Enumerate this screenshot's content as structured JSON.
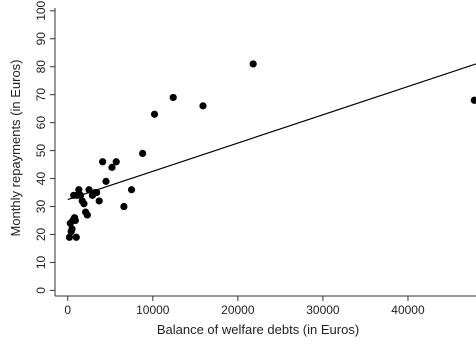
{
  "chart_data": {
    "type": "scatter",
    "title": "",
    "xlabel": "Balance of welfare debts (in Euros)",
    "ylabel": "Monthly repayments (in Euros)",
    "xlim": [
      -1500,
      48000
    ],
    "ylim": [
      -2,
      101
    ],
    "xticks": [
      0,
      10000,
      20000,
      30000,
      40000
    ],
    "xtick_labels": [
      "0",
      "10000",
      "20000",
      "30000",
      "40000"
    ],
    "yticks": [
      0,
      10,
      20,
      30,
      40,
      50,
      60,
      70,
      80,
      90,
      100
    ],
    "ytick_labels": [
      "0",
      "10",
      "20",
      "30",
      "40",
      "50",
      "60",
      "70",
      "80",
      "90",
      "100"
    ],
    "grid": false,
    "legend": "none",
    "colors": {
      "points": "#000000",
      "line": "#000000",
      "axis": "#333333"
    },
    "points": [
      {
        "x": 200,
        "y": 19
      },
      {
        "x": 300,
        "y": 24
      },
      {
        "x": 400,
        "y": 21
      },
      {
        "x": 500,
        "y": 22
      },
      {
        "x": 600,
        "y": 25
      },
      {
        "x": 700,
        "y": 34
      },
      {
        "x": 800,
        "y": 26
      },
      {
        "x": 900,
        "y": 25
      },
      {
        "x": 1000,
        "y": 19
      },
      {
        "x": 1100,
        "y": 34
      },
      {
        "x": 1300,
        "y": 36
      },
      {
        "x": 1500,
        "y": 34
      },
      {
        "x": 1700,
        "y": 32
      },
      {
        "x": 1900,
        "y": 31
      },
      {
        "x": 2100,
        "y": 28
      },
      {
        "x": 2300,
        "y": 27
      },
      {
        "x": 2500,
        "y": 36
      },
      {
        "x": 2900,
        "y": 34
      },
      {
        "x": 3200,
        "y": 35
      },
      {
        "x": 3400,
        "y": 35
      },
      {
        "x": 3700,
        "y": 32
      },
      {
        "x": 4100,
        "y": 46
      },
      {
        "x": 4500,
        "y": 39
      },
      {
        "x": 5200,
        "y": 44
      },
      {
        "x": 5700,
        "y": 46
      },
      {
        "x": 6600,
        "y": 30
      },
      {
        "x": 7500,
        "y": 36
      },
      {
        "x": 8800,
        "y": 49
      },
      {
        "x": 10200,
        "y": 63
      },
      {
        "x": 12400,
        "y": 69
      },
      {
        "x": 15900,
        "y": 66
      },
      {
        "x": 21800,
        "y": 81
      },
      {
        "x": 47800,
        "y": 68
      }
    ],
    "fit_line": {
      "x": [
        0,
        48000
      ],
      "y": [
        32.5,
        81
      ]
    }
  }
}
